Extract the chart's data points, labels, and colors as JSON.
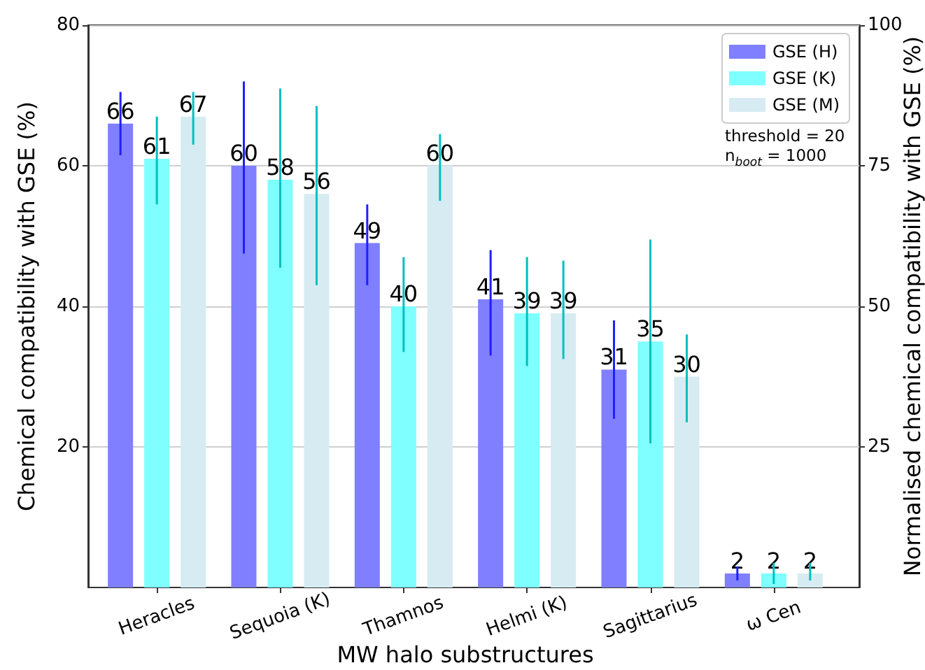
{
  "chart_data": {
    "type": "bar",
    "xlabel": "MW halo substructures",
    "ylabel": "Chemical compatibility with GSE (%)",
    "y2label": "Normalised chemical compatibility with GSE (%)",
    "categories": [
      "Heracles",
      "Sequoia (K)",
      "Thamnos",
      "Helmi (K)",
      "Sagittarius",
      "ω Cen"
    ],
    "series": [
      {
        "name": "GSE (H)",
        "color": "#7f7fff",
        "values": [
          66,
          60,
          49,
          41,
          31,
          2
        ],
        "errors": [
          [
            61.5,
            70.5
          ],
          [
            47.5,
            72
          ],
          [
            43,
            54.5
          ],
          [
            33,
            48
          ],
          [
            24,
            38
          ],
          [
            1,
            3
          ]
        ]
      },
      {
        "name": "GSE (K)",
        "color": "#7fffff",
        "values": [
          61,
          58,
          40,
          39,
          35,
          2
        ],
        "errors": [
          [
            54.5,
            67
          ],
          [
            45.5,
            71
          ],
          [
            33.5,
            47
          ],
          [
            31.5,
            47
          ],
          [
            20.5,
            49.5
          ],
          [
            0.5,
            3.5
          ]
        ]
      },
      {
        "name": "GSE (M)",
        "color": "#d6ecf2",
        "values": [
          67,
          56,
          60,
          39,
          30,
          2
        ],
        "errors": [
          [
            63,
            70.5
          ],
          [
            43,
            68.5
          ],
          [
            55,
            64.5
          ],
          [
            32.5,
            46.5
          ],
          [
            23.5,
            36
          ],
          [
            1,
            3.5
          ]
        ]
      }
    ],
    "ylim": [
      0,
      80
    ],
    "yticks": [
      20,
      40,
      60,
      80
    ],
    "y2lim": [
      0,
      100
    ],
    "y2ticks": [
      25,
      50,
      75,
      100
    ],
    "grid": "y",
    "legend": "top right",
    "data_labels": true,
    "annotations": [
      "threshold = 20",
      "n$_{boot}$ = 1000"
    ]
  }
}
